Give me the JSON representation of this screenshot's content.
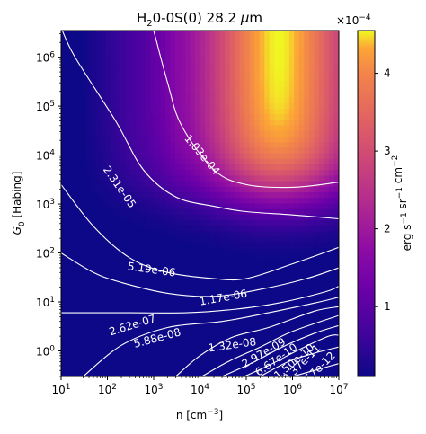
{
  "chart_data": {
    "type": "heatmap",
    "title": "H$_2$0-0S(0) 28.2 $\\mu$m",
    "title_parts": {
      "main": "H",
      "sub": "2",
      "rest": "0-0S(0) 28.2 ",
      "mu": "μ",
      "unit": "m"
    },
    "xlabel": "n [cm$^{-3}$]",
    "xlabel_parts": {
      "main": "n [cm",
      "sup": "−3",
      "end": "]"
    },
    "ylabel": "$G_0$ [Habing]",
    "ylabel_parts": {
      "main": "G",
      "sub": "0",
      "rest": " [Habing]"
    },
    "x_scale": "log",
    "y_scale": "log",
    "xlim": [
      10.0,
      10000000.0
    ],
    "ylim": [
      0.3,
      3500000.0
    ],
    "x_ticks": [
      {
        "value": 10.0,
        "base": "10",
        "exp": "1"
      },
      {
        "value": 100.0,
        "base": "10",
        "exp": "2"
      },
      {
        "value": 1000.0,
        "base": "10",
        "exp": "3"
      },
      {
        "value": 10000.0,
        "base": "10",
        "exp": "4"
      },
      {
        "value": 100000.0,
        "base": "10",
        "exp": "5"
      },
      {
        "value": 1000000.0,
        "base": "10",
        "exp": "6"
      },
      {
        "value": 10000000.0,
        "base": "10",
        "exp": "7"
      }
    ],
    "y_ticks": [
      {
        "value": 1.0,
        "base": "10",
        "exp": "0"
      },
      {
        "value": 10.0,
        "base": "10",
        "exp": "1"
      },
      {
        "value": 100.0,
        "base": "10",
        "exp": "2"
      },
      {
        "value": 1000.0,
        "base": "10",
        "exp": "3"
      },
      {
        "value": 10000.0,
        "base": "10",
        "exp": "4"
      },
      {
        "value": 100000.0,
        "base": "10",
        "exp": "5"
      },
      {
        "value": 1000000.0,
        "base": "10",
        "exp": "6"
      }
    ],
    "colormap": "plasma",
    "colorbar": {
      "label": "erg s$^{-1}$ sr$^{-1}$ cm$^{-2}$",
      "label_parts": [
        {
          "t": "erg s",
          "sup": "−1"
        },
        {
          "t": " sr",
          "sup": "−1"
        },
        {
          "t": " cm",
          "sup": "−2"
        }
      ],
      "offset_text": "×10$^{-4}$",
      "offset_parts": {
        "base": "×10",
        "sup": "−4"
      },
      "vmin": 0.1,
      "vmax": 4.55,
      "ticks": [
        {
          "value": 1,
          "label": "1"
        },
        {
          "value": 2,
          "label": "2"
        },
        {
          "value": 3,
          "label": "3"
        },
        {
          "value": 4,
          "label": "4"
        }
      ]
    },
    "intensity_peak": {
      "n": 3000000.0,
      "G0": 3000000.0,
      "value_e4": 4.55
    },
    "contours": [
      {
        "label": "1.03e-04",
        "points": [
          [
            1000.0,
            3500000.0
          ],
          [
            2000.0,
            300000.0
          ],
          [
            4000.0,
            40000.0
          ],
          [
            20000.0,
            5000.0
          ],
          [
            100000.0,
            2500.0
          ],
          [
            1000000.0,
            2200.0
          ],
          [
            10000000.0,
            2800.0
          ]
        ]
      },
      {
        "label": "2.31e-05",
        "points": [
          [
            10.0,
            4000000.0
          ],
          [
            20.0,
            1000000.0
          ],
          [
            150.0,
            50000.0
          ],
          [
            600.0,
            5000.0
          ],
          [
            3000.0,
            1400.0
          ],
          [
            20000.0,
            900.0
          ],
          [
            100000.0,
            700.0
          ],
          [
            1000000.0,
            600.0
          ],
          [
            10000000.0,
            500.0
          ]
        ]
      },
      {
        "label": "5.19e-06",
        "points": [
          [
            10.0,
            2500.0
          ],
          [
            50.0,
            350.0
          ],
          [
            300.0,
            80.0
          ],
          [
            2000.0,
            40.0
          ],
          [
            20000.0,
            30.0
          ],
          [
            100000.0,
            30.0
          ],
          [
            1000000.0,
            60.0
          ],
          [
            10000000.0,
            130.0
          ]
        ]
      },
      {
        "label": "1.17e-06",
        "points": [
          [
            10.0,
            100.0
          ],
          [
            50.0,
            40.0
          ],
          [
            200.0,
            25.0
          ],
          [
            2000.0,
            15.0
          ],
          [
            20000.0,
            13.0
          ],
          [
            200000.0,
            18.0
          ],
          [
            2000000.0,
            30.0
          ],
          [
            10000000.0,
            50.0
          ]
        ]
      },
      {
        "label": "2.62e-07",
        "points": [
          [
            10.0,
            6
          ],
          [
            300.0,
            6
          ],
          [
            5000.0,
            6
          ],
          [
            50000.0,
            7
          ],
          [
            500000.0,
            9.5
          ],
          [
            5000000.0,
            16.0
          ],
          [
            10000000.0,
            21.0
          ]
        ]
      },
      {
        "label": "5.88e-08",
        "points": [
          [
            30.0,
            0.3
          ],
          [
            200.0,
            1.3
          ],
          [
            2000.0,
            3
          ],
          [
            30000.0,
            4
          ],
          [
            300000.0,
            6
          ],
          [
            3000000.0,
            9.5
          ],
          [
            10000000.0,
            12.5
          ]
        ]
      },
      {
        "label": "1.32e-08",
        "points": [
          [
            3000.0,
            0.3
          ],
          [
            10000.0,
            0.8
          ],
          [
            50000.0,
            1.9
          ],
          [
            300000.0,
            3
          ],
          [
            3000000.0,
            6.5
          ],
          [
            10000000.0,
            8
          ]
        ]
      },
      {
        "label": "2.97e-09",
        "points": [
          [
            11000.0,
            0.3
          ],
          [
            40000.0,
            0.6
          ],
          [
            200000.0,
            1.2
          ],
          [
            1000000.0,
            2.5
          ],
          [
            10000000.0,
            5.3
          ]
        ]
      },
      {
        "label": "6.67e-10",
        "points": [
          [
            30000.0,
            0.3
          ],
          [
            150000.0,
            0.6
          ],
          [
            600000.0,
            1.2
          ],
          [
            3000000.0,
            2.3
          ],
          [
            10000000.0,
            3.3
          ]
        ]
      },
      {
        "label": "1.50e-10",
        "points": [
          [
            90000.0,
            0.3
          ],
          [
            300000.0,
            0.5
          ],
          [
            1500000.0,
            1.1
          ],
          [
            6000000.0,
            2
          ],
          [
            10000000.0,
            2.1
          ]
        ]
      },
      {
        "label": "3.37e-11",
        "points": [
          [
            200000.0,
            0.3
          ],
          [
            800000.0,
            0.6
          ],
          [
            3000000.0,
            0.9
          ],
          [
            10000000.0,
            1.2
          ]
        ]
      },
      {
        "label": "7.57e-12",
        "points": [
          [
            1000000.0,
            0.3
          ],
          [
            3000000.0,
            0.4
          ],
          [
            7000000.0,
            0.5
          ],
          [
            10000000.0,
            0.55
          ]
        ]
      }
    ],
    "contour_labels": [
      {
        "text": "1.03e-04",
        "n": 11000.0,
        "G0": 10000.0,
        "angle": 50
      },
      {
        "text": "2.31e-05",
        "n": 180.0,
        "G0": 2200.0,
        "angle": 55
      },
      {
        "text": "5.19e-06",
        "n": 900.0,
        "G0": 45.0,
        "angle": 8
      },
      {
        "text": "1.17e-06",
        "n": 32000.0,
        "G0": 12.0,
        "angle": -10
      },
      {
        "text": "2.62e-07",
        "n": 350.0,
        "G0": 3.3,
        "angle": -17
      },
      {
        "text": "5.88e-08",
        "n": 1200.0,
        "G0": 1.8,
        "angle": -15
      },
      {
        "text": "1.32e-08",
        "n": 50000.0,
        "G0": 1.3,
        "angle": -8
      },
      {
        "text": "2.97e-09",
        "n": 240000.0,
        "G0": 0.9,
        "angle": -30
      },
      {
        "text": "6.67e-10",
        "n": 450000.0,
        "G0": 0.65,
        "angle": -35
      },
      {
        "text": "1.50e-10",
        "n": 1100000.0,
        "G0": 0.6,
        "angle": -40
      },
      {
        "text": "3.37e-11",
        "n": 1600000.0,
        "G0": 0.55,
        "angle": -45
      },
      {
        "text": "7.57e-12",
        "n": 3300000.0,
        "G0": 0.39,
        "angle": -45
      }
    ]
  }
}
